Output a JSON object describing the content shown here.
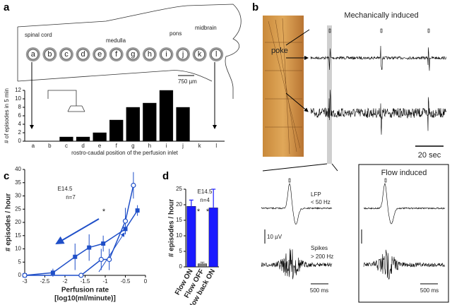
{
  "figure": {
    "panel_labels": [
      "a",
      "b",
      "c",
      "d"
    ],
    "regions": [
      "spinal cord",
      "medulla",
      "pons",
      "midbrain"
    ],
    "scale_a": "750 µm",
    "b_title": "Mechanically induced",
    "poke": "poke",
    "scale_time_b": "20 sec",
    "lfp": "LFP",
    "lfp_band": "< 50 Hz",
    "voltage_scale": "10 µV",
    "spikes": "Spikes",
    "spikes_band": "> 200 Hz",
    "scale_time_left": "500 ms",
    "flow_title": "Flow induced",
    "scale_time_right": "500 ms"
  },
  "chart_data": [
    {
      "type": "bar",
      "ylabel": "# of episodes in 5 min",
      "xlabel": "rostro-caudal position of the perfusion inlet",
      "categories": [
        "a",
        "b",
        "c",
        "d",
        "e",
        "f",
        "g",
        "h",
        "i",
        "j",
        "k",
        "l"
      ],
      "values": [
        0,
        0,
        1,
        1,
        2,
        5,
        8,
        9,
        12,
        8,
        0,
        0
      ],
      "color": "#000000",
      "ylim": [
        0,
        12
      ],
      "yticks": [
        0,
        2,
        4,
        6,
        8,
        10,
        12
      ]
    },
    {
      "type": "line",
      "ylabel": "# episodes / hour",
      "xlabel": "Perfusion rate",
      "xlabel_unit": "[log10(ml/minute)]",
      "annotations": [
        "E14.5",
        "n=7",
        "*"
      ],
      "series": [
        {
          "name": "filled",
          "color": "#1f4fc8",
          "marker": "square",
          "x": [
            -3,
            -2.3,
            -1.75,
            -1.4,
            -1.05,
            -0.5,
            -0.2
          ],
          "values": [
            0,
            1,
            7,
            10.5,
            12,
            17.5,
            24.5
          ],
          "errors": [
            0,
            1.5,
            5,
            5,
            3,
            2,
            2
          ]
        },
        {
          "name": "open",
          "color": "#1f4fc8",
          "marker": "circle",
          "x": [
            -3,
            -1.6,
            -1.1,
            -0.9,
            -0.5,
            -0.3
          ],
          "values": [
            0,
            0,
            6,
            6,
            20.5,
            34
          ],
          "errors": [
            0,
            0,
            4,
            4,
            5,
            5
          ]
        }
      ],
      "xlim": [
        -3,
        0
      ],
      "xticks": [
        -3,
        -2.5,
        -2,
        -1.5,
        -1,
        -0.5,
        0
      ],
      "ylim": [
        0,
        40
      ],
      "yticks": [
        0,
        5,
        10,
        15,
        20,
        25,
        30,
        35,
        40
      ]
    },
    {
      "type": "bar",
      "ylabel": "# episodes / hour",
      "annotations": [
        "E14.5",
        "n=4",
        "*",
        "*"
      ],
      "categories": [
        "Flow ON",
        "Flow OFF",
        "Flow back ON"
      ],
      "values": [
        19.5,
        1,
        19
      ],
      "errors": [
        2,
        0.5,
        6
      ],
      "colors": [
        "#1a1aff",
        "#808080",
        "#1a1aff"
      ],
      "ylim": [
        0,
        25
      ],
      "yticks": [
        0,
        5,
        10,
        15,
        20,
        25
      ]
    }
  ]
}
